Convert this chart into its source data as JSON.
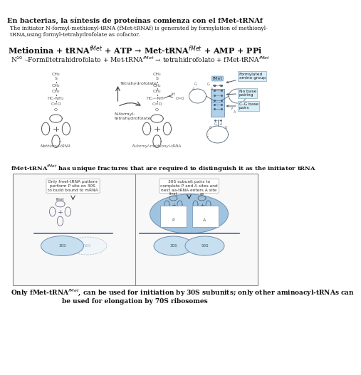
{
  "title": "En bacterias, la síntesis de proteínas comienza con el fMet-tRNAf",
  "subtitle1": "The initiator N-formyl-methionyl-tRNA (fMet-tRNAf) is generated by formylation of methionyl-",
  "subtitle2": "tRNA,using formyl-tetrahydrofolate as cofactor.",
  "eq1": "Metionina + tRNA$^{fMet}$ + ATP → Met-tRNA$^{fMet}$ + AMP + PPi",
  "eq2": "N$^{10}$ –Formiltetrahidrofolato + Met-tRNA$^{fMet}$ → tetrahidrofolato + fMet-tRNA$^{fMet}$",
  "cap1": "fMet-tRNA$^{fMet}$ has unique fractures that are required to distinguish it as the initiator tRNA",
  "cap2l1": "Only fMet-tRNA$^{fMet}$, can be used for initiation by 30S subunits; only other aminoacyl-tRNAs can",
  "cap2l2": "be used for elongation by 70S ribosomes",
  "panel_left_text": "Only fmet-tRNA pattern-\nperform P site on 30S\nto build bound to mRNA",
  "panel_right_text": "30S subunit pairs to\ncomplete P and A sites and\nnext aa-tRNA enters A site",
  "label_methionyl": "Methionyl-tRNAₗ",
  "label_nformyl": "N-formyl-methionyl-tRNA",
  "label_tetrahydrofolate": "Tetrahydrofolate",
  "label_nformyltetrahydro": "N-formyl-\ntetrahydrofolate",
  "label_fmet_top": "fMet",
  "label_formylated": "Formylated\namino group",
  "label_no_base": "No base\npairing",
  "label_cgbase": "C-G base\npairs",
  "bg_color": "#ffffff",
  "text_color": "#000000",
  "light_blue": "#c8dff0",
  "mid_blue": "#a0c4e0",
  "dark_blue": "#7090b0",
  "box_blue": "#b0d0e8",
  "arrow_blue": "#8ab0d0"
}
